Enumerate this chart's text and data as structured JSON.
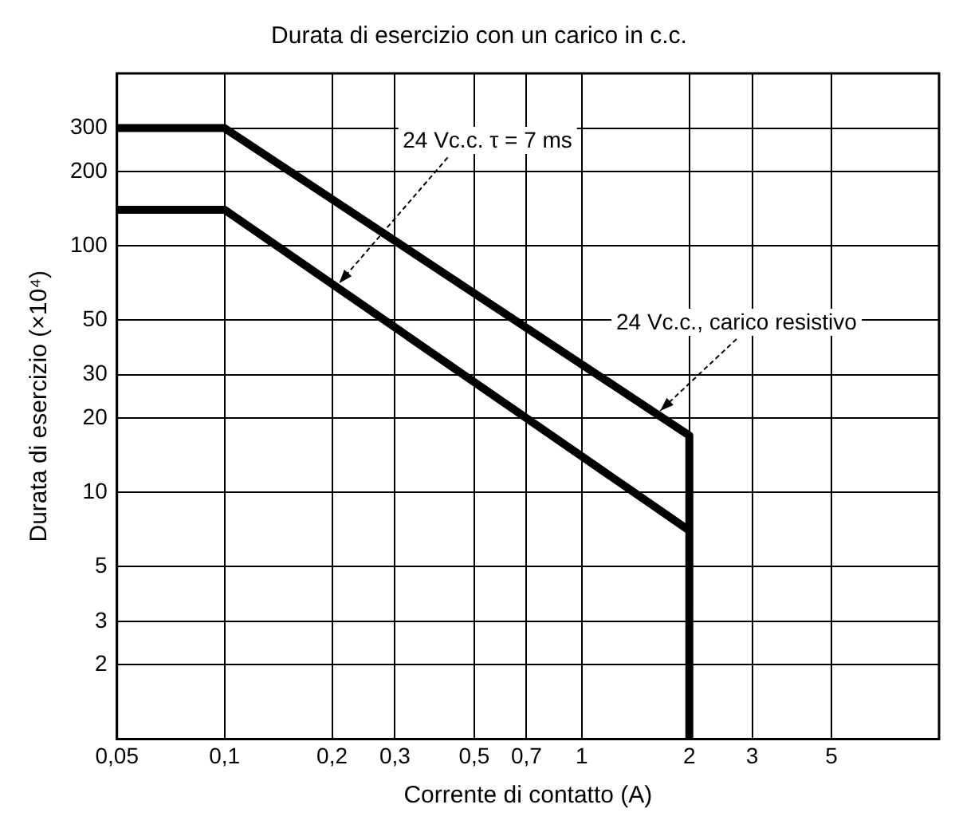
{
  "chart_data": {
    "type": "line",
    "title": "Durata di esercizio con un carico in c.c.",
    "xlabel": "Corrente di contatto (A)",
    "ylabel": "Durata di esercizio (×10⁴)",
    "series": [
      {
        "name": "24 Vc.c., carico resistivo",
        "color": "#000000",
        "x": [
          0.05,
          0.1,
          2,
          2
        ],
        "values": [
          300,
          300,
          17,
          1
        ]
      },
      {
        "name": "24 Vc.c. τ = 7 ms",
        "color": "#000000",
        "x": [
          0.05,
          0.1,
          2
        ],
        "values": [
          140,
          140,
          7
        ]
      }
    ],
    "log": "xy",
    "xlim": [
      0.05,
      10
    ],
    "ylim": [
      1,
      500
    ],
    "xticks": [
      {
        "value": 0.05,
        "label": "0,05"
      },
      {
        "value": 0.1,
        "label": "0,1"
      },
      {
        "value": 0.2,
        "label": "0,2"
      },
      {
        "value": 0.3,
        "label": "0,3"
      },
      {
        "value": 0.5,
        "label": "0,5"
      },
      {
        "value": 0.7,
        "label": "0,7"
      },
      1,
      2,
      3,
      5
    ],
    "yticks": [
      2,
      3,
      5,
      10,
      20,
      30,
      50,
      100,
      200,
      300
    ],
    "grid": true,
    "legend": false,
    "marker": "none",
    "line_style": "solid"
  }
}
